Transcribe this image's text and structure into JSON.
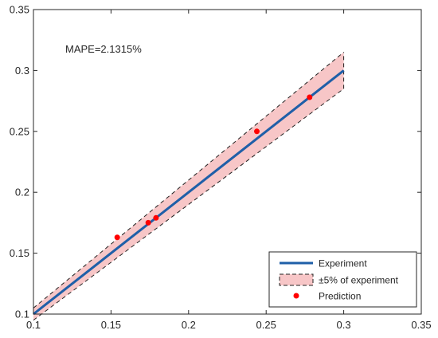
{
  "chart_data": {
    "type": "scatter",
    "title": "",
    "xlabel": "",
    "ylabel": "",
    "xlim": [
      0.1,
      0.35
    ],
    "ylim": [
      0.1,
      0.35
    ],
    "xticks": [
      "0.1",
      "0.15",
      "0.2",
      "0.25",
      "0.3",
      "0.35"
    ],
    "yticks": [
      "0.1",
      "0.15",
      "0.2",
      "0.25",
      "0.3",
      "0.35"
    ],
    "grid": false,
    "legend_position": "bottom-right",
    "annotation": "MAPE=2.1315%",
    "series": [
      {
        "name": "Experiment",
        "kind": "line",
        "color": "#1f5fa8",
        "x": [
          0.1,
          0.3
        ],
        "y": [
          0.1,
          0.3
        ]
      },
      {
        "name": "±5% of experiment",
        "kind": "band",
        "color": "#f7c6c7",
        "x": [
          0.1,
          0.3
        ],
        "y_low": [
          0.095,
          0.285
        ],
        "y_high": [
          0.105,
          0.315
        ]
      },
      {
        "name": "Prediction",
        "kind": "scatter",
        "color": "#ff0000",
        "x": [
          0.154,
          0.174,
          0.179,
          0.244,
          0.278
        ],
        "y": [
          0.163,
          0.175,
          0.179,
          0.25,
          0.278
        ]
      }
    ]
  }
}
